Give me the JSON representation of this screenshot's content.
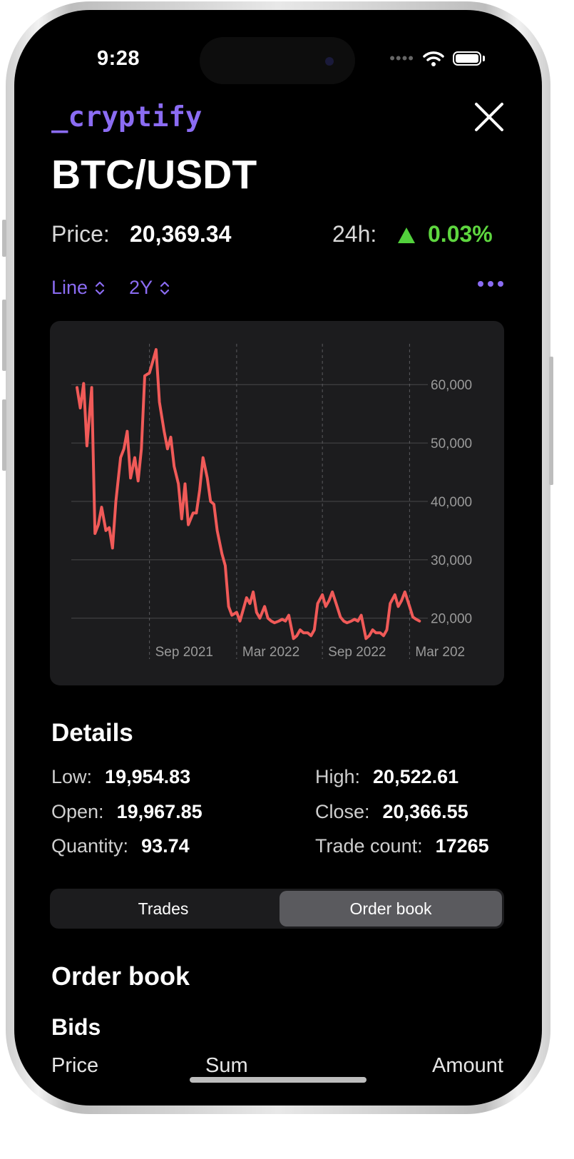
{
  "status_bar": {
    "time": "9:28",
    "signal_icon": "signal-dots-icon",
    "wifi_icon": "wifi-icon",
    "battery_icon": "battery-icon"
  },
  "header": {
    "brand": "_cryptify",
    "pair": "BTC/USDT",
    "close_icon": "close-icon"
  },
  "price": {
    "label": "Price:",
    "value": "20,369.34"
  },
  "change": {
    "label": "24h:",
    "value": "0.03%",
    "direction": "up",
    "color": "#5ed63f"
  },
  "toolbar": {
    "chart_type": "Line",
    "range": "2Y",
    "more_icon": "ellipsis-icon"
  },
  "colors": {
    "accent": "#8b6cf3",
    "line": "#f05a58",
    "card": "#1c1c1e",
    "positive": "#5ed63f"
  },
  "chart_data": {
    "type": "line",
    "title": "",
    "xlabel": "",
    "ylabel": "",
    "x_tick_labels": [
      "Sep 2021",
      "Mar 2022",
      "Sep 2022",
      "Mar 202"
    ],
    "y_tick_labels": [
      "60,000",
      "50,000",
      "40,000",
      "30,000",
      "20,000"
    ],
    "y_ticks": [
      60000,
      50000,
      40000,
      30000,
      20000
    ],
    "ylim": [
      13000,
      66500
    ],
    "xlim": [
      "2021-02-17",
      "2023-03-01"
    ],
    "grid": {
      "horizontal": true,
      "vertical_dashed": true
    },
    "series": [
      {
        "x": [
          "2021-03-01",
          "2021-03-08",
          "2021-03-15",
          "2021-03-22",
          "2021-04-01",
          "2021-04-08",
          "2021-04-15",
          "2021-04-22",
          "2021-05-01",
          "2021-05-08",
          "2021-05-15",
          "2021-05-22",
          "2021-06-01",
          "2021-06-08",
          "2021-06-15",
          "2021-06-22",
          "2021-07-01",
          "2021-07-08",
          "2021-07-15",
          "2021-07-22",
          "2021-08-01",
          "2021-08-08",
          "2021-08-15",
          "2021-08-22",
          "2021-09-01",
          "2021-09-08",
          "2021-09-15",
          "2021-09-22",
          "2021-10-01",
          "2021-10-08",
          "2021-10-15",
          "2021-10-22",
          "2021-11-01",
          "2021-11-08",
          "2021-11-15",
          "2021-11-22",
          "2021-12-01",
          "2021-12-08",
          "2021-12-15",
          "2021-12-22",
          "2022-01-01",
          "2022-01-08",
          "2022-01-15",
          "2022-01-22",
          "2022-02-01",
          "2022-02-08",
          "2022-02-15",
          "2022-02-22",
          "2022-03-01",
          "2022-03-08",
          "2022-03-15",
          "2022-03-22",
          "2022-04-01",
          "2022-04-08",
          "2022-04-15",
          "2022-04-22",
          "2022-05-01",
          "2022-05-08",
          "2022-05-15",
          "2022-05-22",
          "2022-06-01",
          "2022-06-08",
          "2022-06-15",
          "2022-06-22",
          "2022-07-01",
          "2022-07-08",
          "2022-07-15",
          "2022-07-22",
          "2022-08-01",
          "2022-08-08",
          "2022-08-15",
          "2022-08-22",
          "2022-09-01",
          "2022-09-08",
          "2022-09-15",
          "2022-09-22",
          "2022-10-01",
          "2022-10-08",
          "2022-10-15",
          "2022-10-22",
          "2022-11-01",
          "2022-11-08",
          "2022-11-15",
          "2022-11-22",
          "2022-12-01",
          "2022-12-08",
          "2022-12-15",
          "2022-12-22",
          "2023-01-01",
          "2023-01-08",
          "2023-01-15",
          "2023-01-22",
          "2023-02-01",
          "2023-02-08",
          "2023-02-15",
          "2023-02-22"
        ],
        "y": [
          59500,
          56000,
          60200,
          49500,
          59500,
          34500,
          36000,
          39000,
          35000,
          35500,
          32000,
          40000,
          47500,
          49000,
          52000,
          44000,
          47500,
          43500,
          49000,
          61500,
          62000,
          64000,
          66000,
          57000,
          52000,
          49000,
          51000,
          46000,
          43000,
          37000,
          43000,
          36000,
          38000,
          38000,
          42000,
          47500,
          44000,
          40000,
          39500,
          35000,
          31000,
          29000,
          22000,
          20500,
          21000,
          19500,
          21500,
          23500,
          22500,
          24500,
          21000,
          20000,
          22000,
          20000,
          19500,
          19200,
          19500,
          19800,
          19500,
          20500,
          16500,
          17000,
          18000,
          17500,
          17500,
          17000,
          18000,
          22500,
          24000,
          22000,
          23000,
          24500,
          22000,
          20200,
          19500,
          19200,
          19500,
          19800,
          19500,
          20500,
          16500,
          17000,
          18000,
          17500,
          17500,
          17000,
          18000,
          22500,
          24000,
          22000,
          23000,
          24500,
          22000,
          20200,
          19800,
          19500
        ],
        "color": "#f05a58"
      }
    ]
  },
  "details": {
    "title": "Details",
    "low_label": "Low:",
    "low_value": "19,954.83",
    "high_label": "High:",
    "high_value": "20,522.61",
    "open_label": "Open:",
    "open_value": "19,967.85",
    "close_label": "Close:",
    "close_value": "20,366.55",
    "quantity_label": "Quantity:",
    "quantity_value": "93.74",
    "tradecount_label": "Trade count:",
    "tradecount_value": "17265"
  },
  "segmented": {
    "trades": "Trades",
    "order_book": "Order book",
    "selected": "Order book"
  },
  "order_book": {
    "title": "Order book",
    "bids_title": "Bids",
    "columns": [
      "Price",
      "Sum",
      "Amount"
    ]
  }
}
